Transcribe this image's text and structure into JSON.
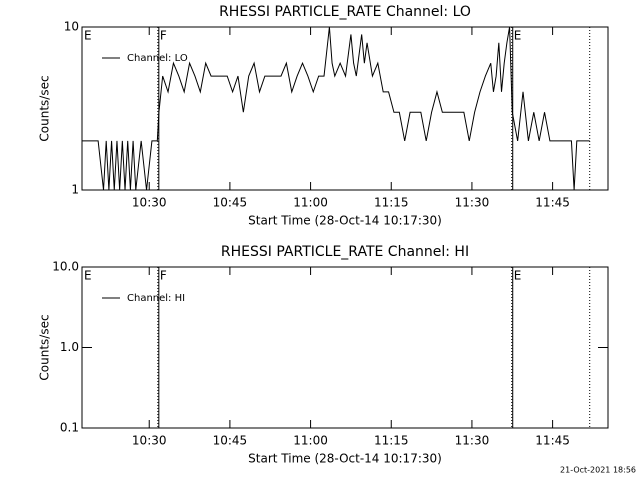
{
  "chart_data": [
    {
      "type": "line",
      "title": "RHESSI PARTICLE_RATE Channel: LO",
      "x_label": "Start Time (28-Oct-14 10:17:30)",
      "y_label": "Counts/sec",
      "log_y": true,
      "xlim": [
        0,
        97.8
      ],
      "ylim": [
        1,
        10
      ],
      "xticks": [
        {
          "value": 12.5,
          "label": "10:30"
        },
        {
          "value": 27.5,
          "label": "10:45"
        },
        {
          "value": 42.5,
          "label": "11:00"
        },
        {
          "value": 57.5,
          "label": "11:15"
        },
        {
          "value": 72.5,
          "label": "11:30"
        },
        {
          "value": 87.5,
          "label": "11:45"
        }
      ],
      "yticks": [
        1,
        10
      ],
      "annotations": [
        {
          "x": 0,
          "text": "E"
        },
        {
          "x": 14.1,
          "text": "F"
        },
        {
          "x": 79.9,
          "text": "E"
        }
      ],
      "vlines": [
        14.1,
        79.9,
        94.4
      ],
      "series": [
        {
          "name": "Channel: LO",
          "color": "#000000",
          "x": [
            0,
            3,
            4,
            4.5,
            5,
            5.5,
            6,
            6.5,
            7,
            7.5,
            8,
            8.5,
            9,
            9.5,
            10,
            11,
            12,
            13,
            14,
            14.3,
            15,
            16,
            17,
            18,
            19,
            20,
            21,
            22,
            23,
            24,
            25,
            27,
            28,
            29,
            30,
            31,
            32,
            33,
            34,
            35,
            37,
            38,
            39,
            40,
            41,
            42,
            43,
            44,
            45,
            46,
            46.5,
            47,
            48,
            49,
            50,
            50.5,
            51,
            52,
            52.5,
            53,
            54,
            55,
            56,
            57,
            58,
            59,
            60,
            61,
            62,
            63,
            64,
            65,
            66,
            67,
            68,
            70,
            71,
            72,
            73,
            74,
            75,
            76,
            76.5,
            77,
            77.5,
            78,
            78.5,
            79,
            79.5,
            80,
            81,
            82,
            83,
            84,
            85,
            86,
            87,
            89,
            91,
            91.5,
            92,
            94.4
          ],
          "values": [
            2,
            2,
            1,
            2,
            1,
            2,
            1,
            2,
            1,
            2,
            1,
            2,
            1,
            2,
            1,
            2,
            1,
            2,
            2,
            3,
            5,
            4,
            6,
            5,
            4,
            6,
            5,
            4,
            6,
            5,
            5,
            5,
            4,
            5,
            3,
            5,
            6,
            4,
            5,
            5,
            5,
            6,
            4,
            5,
            6,
            5,
            4,
            5,
            5,
            10,
            6,
            5,
            6,
            5,
            9,
            6,
            5,
            9,
            6,
            8,
            5,
            6,
            4,
            4,
            3,
            3,
            2,
            3,
            3,
            3,
            2,
            3,
            4,
            3,
            3,
            3,
            3,
            2,
            3,
            4,
            5,
            6,
            4,
            5,
            8,
            4,
            6,
            8,
            10,
            3,
            2,
            4,
            2,
            3,
            2,
            3,
            2,
            2,
            2,
            1,
            2,
            2
          ]
        }
      ]
    },
    {
      "type": "line",
      "title": "RHESSI PARTICLE_RATE Channel: HI",
      "x_label": "Start Time (28-Oct-14 10:17:30)",
      "y_label": "Counts/sec",
      "log_y": true,
      "xlim": [
        0,
        97.8
      ],
      "ylim": [
        0.1,
        10
      ],
      "xticks": [
        {
          "value": 12.5,
          "label": "10:30"
        },
        {
          "value": 27.5,
          "label": "10:45"
        },
        {
          "value": 42.5,
          "label": "11:00"
        },
        {
          "value": 57.5,
          "label": "11:15"
        },
        {
          "value": 72.5,
          "label": "11:30"
        },
        {
          "value": 87.5,
          "label": "11:45"
        }
      ],
      "yticks": [
        0.1,
        {
          "value": 1,
          "label": "1.0"
        },
        {
          "value": 10,
          "label": "10.0"
        }
      ],
      "annotations": [
        {
          "x": 0,
          "text": "E"
        },
        {
          "x": 14.1,
          "text": "F"
        },
        {
          "x": 79.9,
          "text": "E"
        }
      ],
      "vlines": [
        14.1,
        79.9,
        94.4
      ],
      "series": [
        {
          "name": "Channel: HI",
          "color": "#000000",
          "x": [],
          "values": []
        }
      ]
    }
  ],
  "footer": "21-Oct-2021 18:56"
}
